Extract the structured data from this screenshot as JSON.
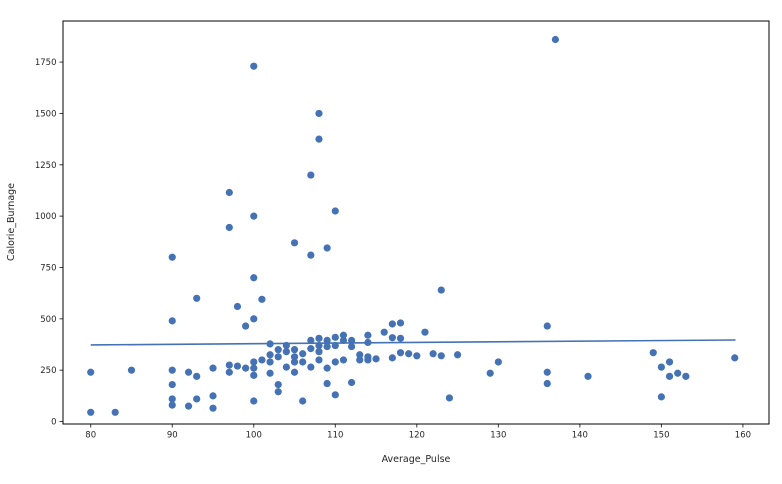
{
  "figure": {
    "background": "#ffffff",
    "frame_color": "#000000",
    "tick_color": "#262626",
    "text_color": "#262626"
  },
  "chart_data": {
    "type": "scatter",
    "title": "",
    "xlabel": "Average_Pulse",
    "ylabel": "Calorie_Burnage",
    "xlim": [
      76.6,
      163.2
    ],
    "ylim": [
      -12,
      1950
    ],
    "x_ticks": [
      80,
      90,
      100,
      110,
      120,
      130,
      140,
      150,
      160
    ],
    "y_ticks": [
      0,
      250,
      500,
      750,
      1000,
      1250,
      1500,
      1750
    ],
    "grid": false,
    "legend": null,
    "marker_color": "#4472b4",
    "marker_radius": 3.6,
    "points": [
      [
        80,
        45
      ],
      [
        80,
        240
      ],
      [
        83,
        45
      ],
      [
        85,
        250
      ],
      [
        90,
        80
      ],
      [
        90,
        110
      ],
      [
        90,
        180
      ],
      [
        90,
        250
      ],
      [
        90,
        490
      ],
      [
        90,
        800
      ],
      [
        92,
        75
      ],
      [
        92,
        240
      ],
      [
        93,
        110
      ],
      [
        93,
        220
      ],
      [
        93,
        600
      ],
      [
        95,
        65
      ],
      [
        95,
        125
      ],
      [
        95,
        260
      ],
      [
        97,
        240
      ],
      [
        97,
        275
      ],
      [
        97,
        945
      ],
      [
        97,
        1115
      ],
      [
        98,
        270
      ],
      [
        98,
        560
      ],
      [
        99,
        260
      ],
      [
        99,
        465
      ],
      [
        100,
        100
      ],
      [
        100,
        225
      ],
      [
        100,
        260
      ],
      [
        100,
        290
      ],
      [
        100,
        500
      ],
      [
        100,
        700
      ],
      [
        100,
        1000
      ],
      [
        100,
        1730
      ],
      [
        101,
        300
      ],
      [
        101,
        595
      ],
      [
        102,
        235
      ],
      [
        102,
        290
      ],
      [
        102,
        325
      ],
      [
        102,
        378
      ],
      [
        103,
        145
      ],
      [
        103,
        180
      ],
      [
        103,
        315
      ],
      [
        103,
        350
      ],
      [
        104,
        265
      ],
      [
        104,
        340
      ],
      [
        104,
        370
      ],
      [
        105,
        240
      ],
      [
        105,
        290
      ],
      [
        105,
        315
      ],
      [
        105,
        350
      ],
      [
        105,
        870
      ],
      [
        106,
        100
      ],
      [
        106,
        290
      ],
      [
        106,
        330
      ],
      [
        107,
        265
      ],
      [
        107,
        355
      ],
      [
        107,
        395
      ],
      [
        107,
        810
      ],
      [
        107,
        1200
      ],
      [
        108,
        300
      ],
      [
        108,
        340
      ],
      [
        108,
        370
      ],
      [
        108,
        405
      ],
      [
        108,
        1375
      ],
      [
        108,
        1500
      ],
      [
        109,
        185
      ],
      [
        109,
        260
      ],
      [
        109,
        365
      ],
      [
        109,
        395
      ],
      [
        109,
        845
      ],
      [
        110,
        130
      ],
      [
        110,
        290
      ],
      [
        110,
        370
      ],
      [
        110,
        410
      ],
      [
        110,
        1025
      ],
      [
        111,
        300
      ],
      [
        111,
        395
      ],
      [
        111,
        420
      ],
      [
        112,
        190
      ],
      [
        112,
        365
      ],
      [
        112,
        395
      ],
      [
        113,
        300
      ],
      [
        113,
        325
      ],
      [
        114,
        300
      ],
      [
        114,
        315
      ],
      [
        114,
        385
      ],
      [
        114,
        420
      ],
      [
        115,
        305
      ],
      [
        116,
        435
      ],
      [
        117,
        310
      ],
      [
        117,
        408
      ],
      [
        117,
        475
      ],
      [
        118,
        335
      ],
      [
        118,
        405
      ],
      [
        118,
        480
      ],
      [
        119,
        330
      ],
      [
        120,
        320
      ],
      [
        121,
        435
      ],
      [
        122,
        330
      ],
      [
        123,
        320
      ],
      [
        123,
        640
      ],
      [
        124,
        115
      ],
      [
        125,
        325
      ],
      [
        129,
        235
      ],
      [
        130,
        290
      ],
      [
        136,
        185
      ],
      [
        136,
        240
      ],
      [
        136,
        465
      ],
      [
        137,
        1860
      ],
      [
        141,
        220
      ],
      [
        149,
        335
      ],
      [
        150,
        120
      ],
      [
        150,
        265
      ],
      [
        151,
        220
      ],
      [
        151,
        290
      ],
      [
        152,
        235
      ],
      [
        153,
        220
      ],
      [
        159,
        310
      ]
    ],
    "regression_line": {
      "x1": 80,
      "y1": 373,
      "x2": 159.1,
      "y2": 397,
      "color": "#4472b4",
      "width": 1.6
    }
  }
}
